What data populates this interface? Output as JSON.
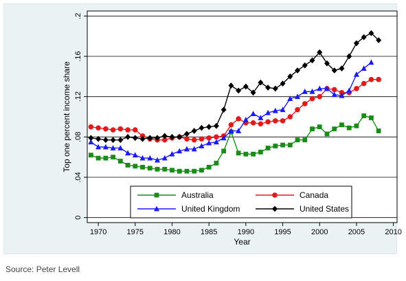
{
  "caption": "Source: Peter Levell",
  "chart_data": {
    "type": "line",
    "xlabel": "Year",
    "ylabel": "Top one percent income share",
    "xlim": [
      1968.5,
      2010.5
    ],
    "ylim": [
      -0.005,
      0.205
    ],
    "xticks": [
      1970,
      1975,
      1980,
      1985,
      1990,
      1995,
      2000,
      2005,
      2010
    ],
    "xtick_labels": [
      "1970",
      "1975",
      "1980",
      "1985",
      "1990",
      "1995",
      "2000",
      "2005",
      "2010"
    ],
    "yticks": [
      0,
      0.04,
      0.08,
      0.12,
      0.16,
      0.2
    ],
    "ytick_labels": [
      "0",
      ".04",
      ".08",
      ".12",
      ".16",
      ".2"
    ],
    "grid": true,
    "legend_position": "bottom-inside",
    "series": [
      {
        "name": "Australia",
        "color": "#1a8a1a",
        "marker": "square",
        "x": [
          1969,
          1970,
          1971,
          1972,
          1973,
          1974,
          1975,
          1976,
          1977,
          1978,
          1979,
          1980,
          1981,
          1982,
          1983,
          1984,
          1985,
          1986,
          1987,
          1988,
          1989,
          1990,
          1991,
          1992,
          1993,
          1994,
          1995,
          1996,
          1997,
          1998,
          1999,
          2000,
          2001,
          2002,
          2003,
          2004,
          2005,
          2006,
          2007,
          2008
        ],
        "y": [
          0.062,
          0.059,
          0.059,
          0.06,
          0.056,
          0.052,
          0.051,
          0.05,
          0.049,
          0.048,
          0.048,
          0.047,
          0.046,
          0.046,
          0.046,
          0.047,
          0.05,
          0.054,
          0.066,
          0.085,
          0.064,
          0.063,
          0.063,
          0.065,
          0.069,
          0.071,
          0.072,
          0.072,
          0.077,
          0.077,
          0.088,
          0.09,
          0.083,
          0.088,
          0.092,
          0.089,
          0.091,
          0.101,
          0.099,
          0.086
        ]
      },
      {
        "name": "Canada",
        "color": "#e31a1c",
        "marker": "circle",
        "x": [
          1969,
          1970,
          1971,
          1972,
          1973,
          1974,
          1975,
          1976,
          1977,
          1978,
          1979,
          1980,
          1981,
          1982,
          1983,
          1984,
          1985,
          1986,
          1987,
          1988,
          1989,
          1990,
          1991,
          1992,
          1993,
          1994,
          1995,
          1996,
          1997,
          1998,
          1999,
          2000,
          2001,
          2002,
          2003,
          2004,
          2005,
          2006,
          2007,
          2008
        ],
        "y": [
          0.09,
          0.089,
          0.088,
          0.087,
          0.088,
          0.087,
          0.087,
          0.081,
          0.078,
          0.077,
          0.077,
          0.079,
          0.08,
          0.078,
          0.077,
          0.078,
          0.079,
          0.08,
          0.081,
          0.092,
          0.098,
          0.094,
          0.094,
          0.093,
          0.095,
          0.096,
          0.096,
          0.1,
          0.107,
          0.113,
          0.118,
          0.12,
          0.128,
          0.127,
          0.124,
          0.124,
          0.128,
          0.133,
          0.137,
          0.137
        ]
      },
      {
        "name": "United Kingdom",
        "color": "#1a1aff",
        "marker": "triangle",
        "x": [
          1969,
          1970,
          1971,
          1972,
          1973,
          1974,
          1975,
          1976,
          1977,
          1978,
          1979,
          1980,
          1981,
          1982,
          1983,
          1984,
          1985,
          1986,
          1987,
          1988,
          1989,
          1990,
          1991,
          1992,
          1993,
          1994,
          1995,
          1996,
          1997,
          1998,
          1999,
          2000,
          2001,
          2002,
          2003,
          2004,
          2005,
          2006,
          2007
        ],
        "y": [
          0.075,
          0.07,
          0.07,
          0.069,
          0.069,
          0.064,
          0.062,
          0.059,
          0.059,
          0.057,
          0.059,
          0.063,
          0.066,
          0.068,
          0.068,
          0.071,
          0.074,
          0.075,
          0.079,
          0.086,
          0.086,
          0.097,
          0.103,
          0.099,
          0.104,
          0.106,
          0.107,
          0.118,
          0.12,
          0.125,
          0.125,
          0.128,
          0.128,
          0.122,
          0.121,
          0.126,
          0.142,
          0.148,
          0.154
        ]
      },
      {
        "name": "United States",
        "color": "#000000",
        "marker": "diamond",
        "x": [
          1969,
          1970,
          1971,
          1972,
          1973,
          1974,
          1975,
          1976,
          1977,
          1978,
          1979,
          1980,
          1981,
          1982,
          1983,
          1984,
          1985,
          1986,
          1987,
          1988,
          1989,
          1990,
          1991,
          1992,
          1993,
          1994,
          1995,
          1996,
          1997,
          1998,
          1999,
          2000,
          2001,
          2002,
          2003,
          2004,
          2005,
          2006,
          2007,
          2008
        ],
        "y": [
          0.079,
          0.078,
          0.077,
          0.077,
          0.077,
          0.08,
          0.079,
          0.078,
          0.079,
          0.079,
          0.081,
          0.08,
          0.08,
          0.083,
          0.086,
          0.089,
          0.09,
          0.091,
          0.107,
          0.131,
          0.126,
          0.13,
          0.124,
          0.134,
          0.129,
          0.128,
          0.133,
          0.14,
          0.146,
          0.151,
          0.156,
          0.164,
          0.153,
          0.146,
          0.148,
          0.16,
          0.173,
          0.179,
          0.183,
          0.176
        ]
      }
    ]
  }
}
